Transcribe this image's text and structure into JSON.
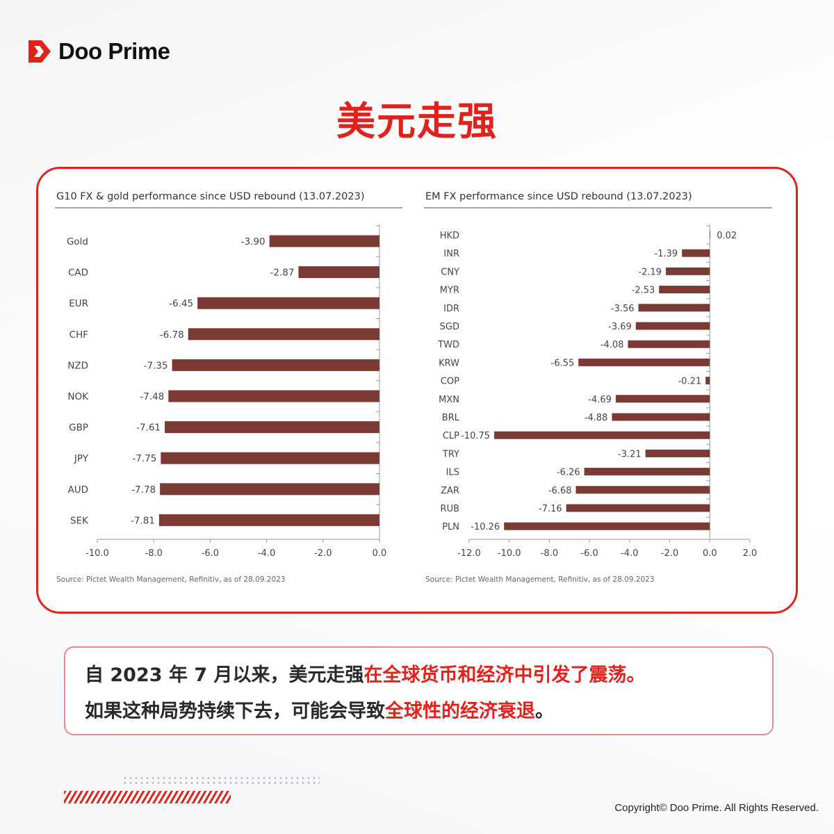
{
  "brand": {
    "name": "Doo Prime",
    "accent_color": "#e0221d",
    "icon": "doo-prime-logo-icon"
  },
  "page_title": "美元走强",
  "chart_data": [
    {
      "type": "bar",
      "orientation": "horizontal",
      "title": "G10 FX & gold performance since USD rebound (13.07.2023)",
      "categories": [
        "Gold",
        "CAD",
        "EUR",
        "CHF",
        "NZD",
        "NOK",
        "GBP",
        "JPY",
        "AUD",
        "SEK"
      ],
      "values": [
        -3.9,
        -2.87,
        -6.45,
        -6.78,
        -7.35,
        -7.48,
        -7.61,
        -7.75,
        -7.78,
        -7.81
      ],
      "value_labels": [
        "-3.90",
        "-2.87",
        "-6.45",
        "-6.78",
        "-7.35",
        "-7.48",
        "-7.61",
        "-7.75",
        "-7.78",
        "-7.81"
      ],
      "xlim": [
        -10.0,
        0.0
      ],
      "xticks": [
        -10.0,
        -8.0,
        -6.0,
        -4.0,
        -2.0,
        0.0
      ],
      "xtick_labels": [
        "-10.0",
        "-8.0",
        "-6.0",
        "-4.0",
        "-2.0",
        "0.0"
      ],
      "xlabel": "",
      "ylabel": "",
      "bar_color": "#7b3a33",
      "source": "Source: Pictet Wealth Management, Refinitiv, as of 28.09.2023"
    },
    {
      "type": "bar",
      "orientation": "horizontal",
      "title": "EM FX performance since USD rebound (13.07.2023)",
      "categories": [
        "HKD",
        "INR",
        "CNY",
        "MYR",
        "IDR",
        "SGD",
        "TWD",
        "KRW",
        "COP",
        "MXN",
        "BRL",
        "CLP",
        "TRY",
        "ILS",
        "ZAR",
        "RUB",
        "PLN"
      ],
      "values": [
        0.02,
        -1.39,
        -2.19,
        -2.53,
        -3.56,
        -3.69,
        -4.08,
        -6.55,
        -0.21,
        -4.69,
        -4.88,
        -10.75,
        -3.21,
        -6.26,
        -6.68,
        -7.16,
        -10.26
      ],
      "value_labels": [
        "0.02",
        "-1.39",
        "-2.19",
        "-2.53",
        "-3.56",
        "-3.69",
        "-4.08",
        "-6.55",
        "-0.21",
        "-4.69",
        "-4.88",
        "-10.75",
        "-3.21",
        "-6.26",
        "-6.68",
        "-7.16",
        "-10.26"
      ],
      "xlim": [
        -12.0,
        2.0
      ],
      "xticks": [
        -12.0,
        -10.0,
        -8.0,
        -6.0,
        -4.0,
        -2.0,
        0.0,
        2.0
      ],
      "xtick_labels": [
        "-12.0",
        "-10.0",
        "-8.0",
        "-6.0",
        "-4.0",
        "-2.0",
        "0.0",
        "2.0"
      ],
      "xlabel": "",
      "ylabel": "",
      "bar_color": "#7b3a33",
      "source": "Source: Pictet Wealth Management, Refinitiv, as of 28.09.2023"
    }
  ],
  "caption": {
    "line1_plain": "自 2023 年 7 月以来，美元走强",
    "line1_highlight": "在全球货币和经济中引发了震荡。",
    "line2_plain": "如果这种局势持续下去，可能会导致",
    "line2_highlight": "全球性的经济衰退",
    "line2_end": "。"
  },
  "copyright": "Copyright© Doo Prime. All Rights Reserved."
}
